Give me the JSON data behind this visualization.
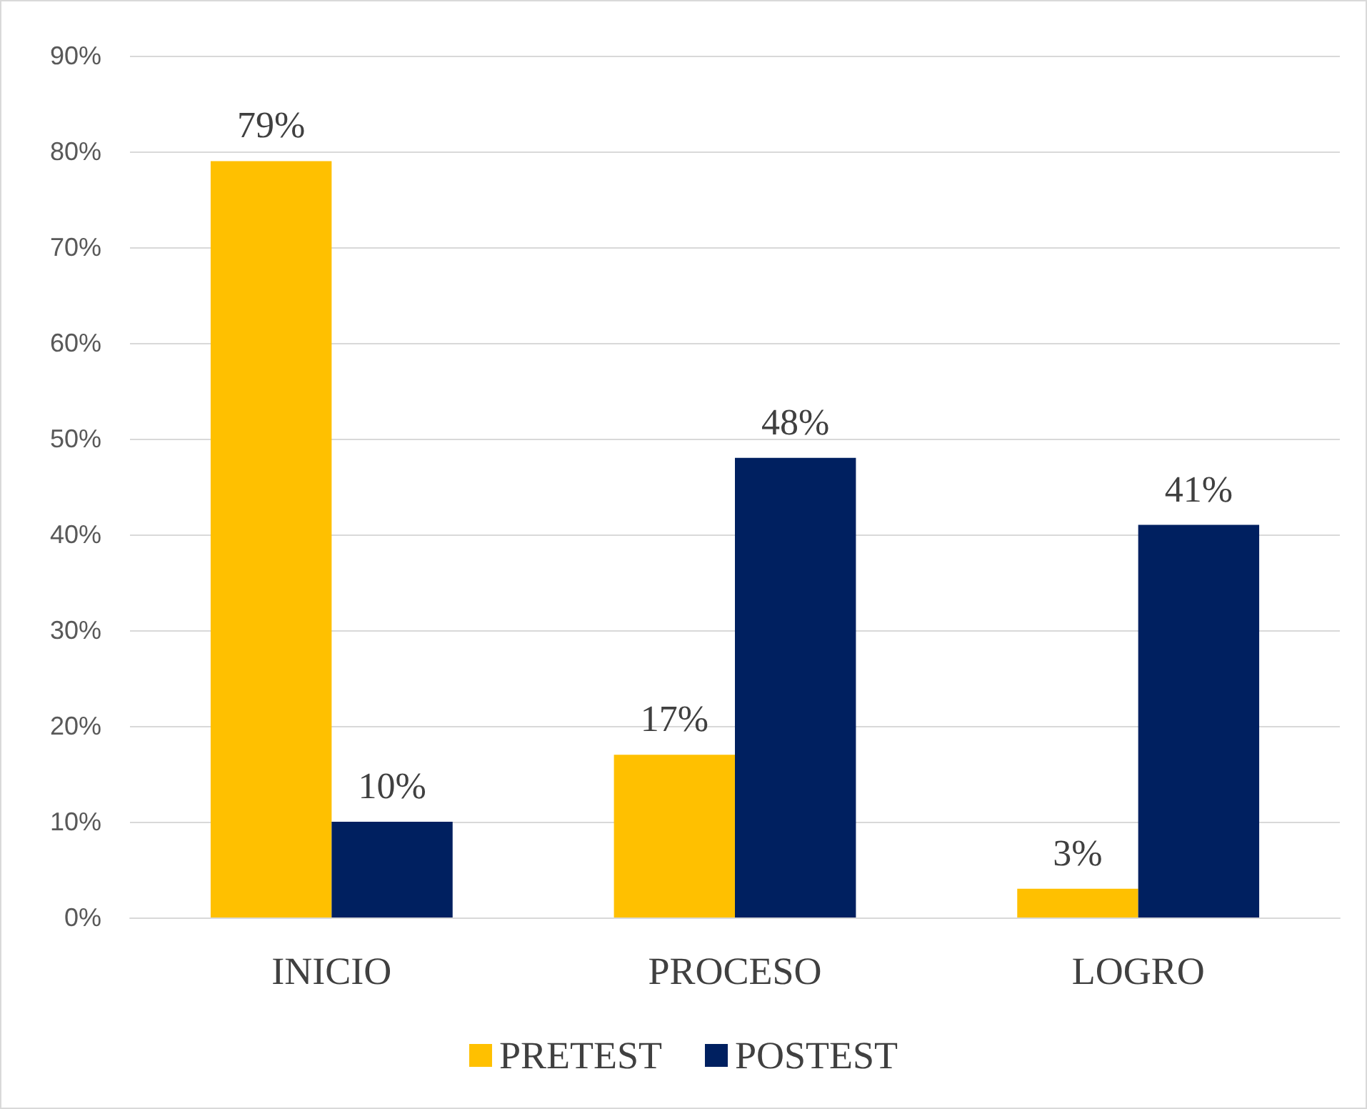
{
  "chart_data": {
    "type": "bar",
    "categories": [
      "INICIO",
      "PROCESO",
      "LOGRO"
    ],
    "series": [
      {
        "name": "PRETEST",
        "color": "#ffc000",
        "values": [
          79,
          17,
          3
        ],
        "value_labels": [
          "79%",
          "17%",
          "3%"
        ]
      },
      {
        "name": "POSTEST",
        "color": "#002060",
        "values": [
          10,
          48,
          41
        ],
        "value_labels": [
          "10%",
          "48%",
          "41%"
        ]
      }
    ],
    "ylim": [
      0,
      90
    ],
    "yticks": [
      {
        "value": 0,
        "label": "0%"
      },
      {
        "value": 10,
        "label": "10%"
      },
      {
        "value": 20,
        "label": "20%"
      },
      {
        "value": 30,
        "label": "30%"
      },
      {
        "value": 40,
        "label": "40%"
      },
      {
        "value": 50,
        "label": "50%"
      },
      {
        "value": 60,
        "label": "60%"
      },
      {
        "value": 70,
        "label": "70%"
      },
      {
        "value": 80,
        "label": "80%"
      },
      {
        "value": 90,
        "label": "90%"
      }
    ],
    "grid": "y",
    "legend": "bottom"
  }
}
